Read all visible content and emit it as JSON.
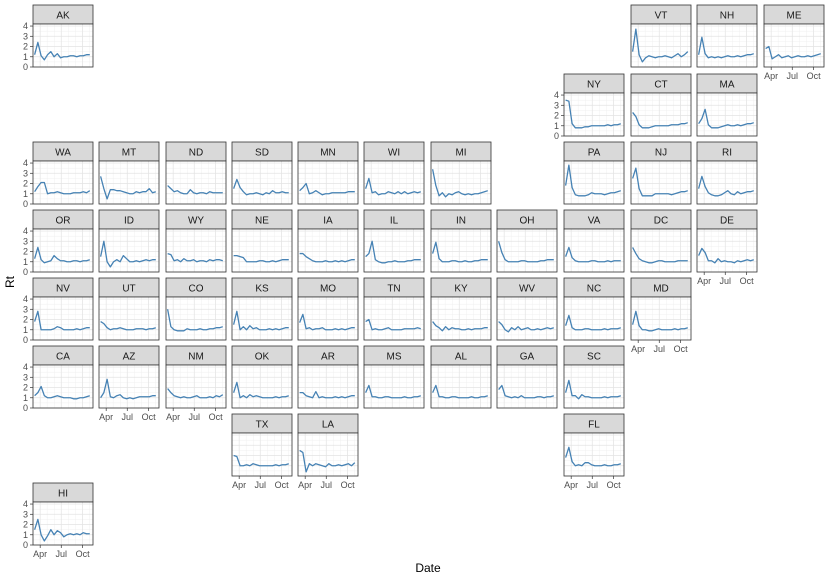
{
  "chart_data": {
    "type": "line",
    "facet": "us-state-grid",
    "xlabel": "Date",
    "ylabel": "Rt",
    "ylim": [
      0,
      4.2
    ],
    "y_ticks": [
      0,
      1,
      2,
      3,
      4
    ],
    "x_range": [
      "2020-03-01",
      "2020-11-15"
    ],
    "x_ticks": [
      {
        "date": "2020-04-01",
        "label": "Apr"
      },
      {
        "date": "2020-07-01",
        "label": "Jul"
      },
      {
        "date": "2020-10-01",
        "label": "Oct"
      }
    ],
    "grid": true,
    "line_color": "#4682b4",
    "strip_color": "#d9d9d9",
    "x": [
      "2020-03-08",
      "2020-03-22",
      "2020-04-05",
      "2020-04-19",
      "2020-05-03",
      "2020-05-17",
      "2020-05-31",
      "2020-06-14",
      "2020-06-28",
      "2020-07-12",
      "2020-07-26",
      "2020-08-09",
      "2020-08-23",
      "2020-09-06",
      "2020-09-20",
      "2020-10-04",
      "2020-10-18",
      "2020-11-01"
    ],
    "panels": [
      {
        "state": "AK",
        "values": [
          1.2,
          2.4,
          1.1,
          0.7,
          1.2,
          1.5,
          1.0,
          1.3,
          0.9,
          1.0,
          1.0,
          1.1,
          1.1,
          1.0,
          1.1,
          1.1,
          1.2,
          1.2
        ]
      },
      {
        "state": "VT",
        "values": [
          1.5,
          3.7,
          1.2,
          0.5,
          0.9,
          1.1,
          1.0,
          0.9,
          1.0,
          1.0,
          1.1,
          1.0,
          0.9,
          1.1,
          1.3,
          1.0,
          1.2,
          1.5
        ]
      },
      {
        "state": "NH",
        "values": [
          1.2,
          2.9,
          1.3,
          0.9,
          1.0,
          0.9,
          1.0,
          0.9,
          1.0,
          1.1,
          1.0,
          1.0,
          1.1,
          1.0,
          1.1,
          1.2,
          1.2,
          1.3
        ]
      },
      {
        "state": "ME",
        "values": [
          1.8,
          2.0,
          0.8,
          1.0,
          1.2,
          0.9,
          1.0,
          1.1,
          0.9,
          1.0,
          1.1,
          1.0,
          1.0,
          1.1,
          1.0,
          1.1,
          1.2,
          1.3
        ]
      },
      {
        "state": "NY",
        "values": [
          3.5,
          3.4,
          1.2,
          0.8,
          0.8,
          0.8,
          0.9,
          0.9,
          1.0,
          1.0,
          1.0,
          1.0,
          1.0,
          1.1,
          1.0,
          1.1,
          1.1,
          1.2
        ]
      },
      {
        "state": "CT",
        "values": [
          2.3,
          1.9,
          1.1,
          0.8,
          0.8,
          0.8,
          0.9,
          1.0,
          1.0,
          1.0,
          1.0,
          1.0,
          1.1,
          1.1,
          1.1,
          1.2,
          1.2,
          1.3
        ]
      },
      {
        "state": "MA",
        "values": [
          1.2,
          1.7,
          2.6,
          1.1,
          0.8,
          0.8,
          0.8,
          0.9,
          1.0,
          1.1,
          1.0,
          1.0,
          1.1,
          1.0,
          1.1,
          1.2,
          1.2,
          1.3
        ]
      },
      {
        "state": "WA",
        "values": [
          1.2,
          1.7,
          2.1,
          2.1,
          1.0,
          1.1,
          1.1,
          1.2,
          1.1,
          1.0,
          1.0,
          1.0,
          1.1,
          1.1,
          1.1,
          1.2,
          1.1,
          1.3
        ]
      },
      {
        "state": "MT",
        "values": [
          2.7,
          1.5,
          0.5,
          1.4,
          1.4,
          1.3,
          1.3,
          1.2,
          1.1,
          1.0,
          1.0,
          1.2,
          1.1,
          1.2,
          1.2,
          1.5,
          1.1,
          1.2
        ]
      },
      {
        "state": "ND",
        "values": [
          1.8,
          1.5,
          1.2,
          1.3,
          1.1,
          1.0,
          1.0,
          1.4,
          1.1,
          1.0,
          1.1,
          1.1,
          1.0,
          1.2,
          1.1,
          1.1,
          1.1,
          1.1
        ]
      },
      {
        "state": "SD",
        "values": [
          1.5,
          2.4,
          1.6,
          1.2,
          0.9,
          1.0,
          1.0,
          1.1,
          1.0,
          0.9,
          1.1,
          1.0,
          1.3,
          1.1,
          1.1,
          1.2,
          1.1,
          1.1
        ]
      },
      {
        "state": "MN",
        "values": [
          1.3,
          1.6,
          2.0,
          1.0,
          1.1,
          1.3,
          1.1,
          0.9,
          1.0,
          1.0,
          1.1,
          1.1,
          1.1,
          1.1,
          1.1,
          1.2,
          1.2,
          1.2
        ]
      },
      {
        "state": "WI",
        "values": [
          1.5,
          2.5,
          1.1,
          1.2,
          0.9,
          1.0,
          1.0,
          1.2,
          1.1,
          1.0,
          1.2,
          1.0,
          1.2,
          1.0,
          1.1,
          1.2,
          1.1,
          1.2
        ]
      },
      {
        "state": "MI",
        "values": [
          3.4,
          1.8,
          0.8,
          1.1,
          0.7,
          1.0,
          0.9,
          1.1,
          1.2,
          1.0,
          0.9,
          1.0,
          0.9,
          1.0,
          1.0,
          1.1,
          1.2,
          1.3
        ]
      },
      {
        "state": "PA",
        "values": [
          1.8,
          3.8,
          1.6,
          0.9,
          0.8,
          0.8,
          0.8,
          0.9,
          1.1,
          1.0,
          1.0,
          1.0,
          0.9,
          1.0,
          1.1,
          1.1,
          1.2,
          1.3
        ]
      },
      {
        "state": "NJ",
        "values": [
          2.5,
          3.5,
          1.5,
          0.8,
          0.8,
          0.8,
          0.8,
          1.0,
          1.0,
          1.0,
          1.0,
          1.0,
          0.9,
          1.0,
          1.1,
          1.2,
          1.2,
          1.3
        ]
      },
      {
        "state": "RI",
        "values": [
          1.5,
          2.7,
          1.7,
          1.1,
          0.9,
          0.8,
          0.8,
          0.9,
          1.1,
          1.3,
          1.0,
          0.9,
          1.2,
          1.0,
          1.1,
          1.2,
          1.2,
          1.3
        ]
      },
      {
        "state": "OR",
        "values": [
          1.3,
          2.4,
          1.2,
          0.9,
          1.0,
          1.1,
          1.6,
          1.3,
          1.1,
          1.1,
          1.0,
          1.0,
          1.1,
          1.1,
          1.0,
          1.1,
          1.1,
          1.2
        ]
      },
      {
        "state": "ID",
        "values": [
          1.5,
          3.0,
          1.0,
          0.5,
          1.0,
          1.2,
          1.0,
          1.6,
          1.3,
          1.0,
          1.0,
          1.1,
          1.0,
          1.1,
          1.2,
          1.1,
          1.2,
          1.2
        ]
      },
      {
        "state": "WY",
        "values": [
          1.8,
          1.7,
          1.1,
          1.2,
          1.0,
          1.3,
          1.1,
          1.1,
          1.2,
          1.0,
          1.1,
          1.1,
          1.0,
          1.2,
          1.1,
          1.2,
          1.2,
          1.1
        ]
      },
      {
        "state": "NE",
        "values": [
          1.6,
          1.6,
          1.5,
          1.4,
          1.0,
          1.0,
          1.0,
          1.0,
          1.1,
          1.1,
          1.0,
          1.0,
          1.1,
          1.0,
          1.1,
          1.2,
          1.2,
          1.2
        ]
      },
      {
        "state": "IA",
        "values": [
          1.8,
          1.8,
          1.5,
          1.3,
          1.1,
          1.0,
          1.0,
          1.0,
          1.1,
          1.0,
          1.0,
          1.1,
          1.0,
          1.1,
          1.0,
          1.1,
          1.2,
          1.2
        ]
      },
      {
        "state": "IL",
        "values": [
          1.5,
          1.8,
          3.0,
          1.2,
          1.0,
          0.9,
          0.9,
          1.0,
          1.0,
          1.1,
          1.0,
          1.0,
          1.0,
          1.1,
          1.1,
          1.2,
          1.2,
          1.2
        ]
      },
      {
        "state": "IN",
        "values": [
          1.8,
          2.9,
          1.3,
          1.0,
          1.0,
          1.0,
          1.1,
          1.1,
          1.0,
          1.0,
          1.1,
          1.0,
          1.0,
          1.1,
          1.1,
          1.2,
          1.2,
          1.2
        ]
      },
      {
        "state": "OH",
        "values": [
          3.0,
          1.9,
          1.2,
          1.0,
          1.0,
          1.0,
          1.0,
          1.1,
          1.1,
          1.0,
          1.0,
          1.0,
          1.0,
          1.1,
          1.1,
          1.2,
          1.2,
          1.2
        ]
      },
      {
        "state": "VA",
        "values": [
          1.5,
          2.4,
          1.4,
          1.1,
          1.0,
          1.0,
          1.0,
          1.0,
          1.1,
          1.1,
          1.0,
          1.0,
          1.0,
          1.1,
          1.0,
          1.1,
          1.1,
          1.1
        ]
      },
      {
        "state": "DC",
        "values": [
          2.4,
          1.8,
          1.3,
          1.1,
          1.0,
          0.9,
          0.9,
          1.0,
          1.1,
          1.1,
          1.0,
          1.0,
          1.0,
          1.0,
          1.1,
          1.1,
          1.1,
          1.1
        ]
      },
      {
        "state": "DE",
        "values": [
          1.6,
          2.3,
          1.9,
          1.1,
          1.1,
          0.9,
          1.3,
          1.0,
          1.1,
          1.0,
          1.0,
          0.9,
          1.1,
          1.0,
          1.1,
          1.2,
          1.1,
          1.2
        ]
      },
      {
        "state": "NV",
        "values": [
          1.8,
          2.8,
          1.0,
          1.0,
          1.0,
          1.0,
          1.1,
          1.3,
          1.2,
          1.0,
          1.0,
          1.0,
          1.0,
          1.1,
          1.0,
          1.1,
          1.2,
          1.2
        ]
      },
      {
        "state": "UT",
        "values": [
          1.8,
          1.6,
          1.2,
          1.0,
          1.1,
          1.1,
          1.2,
          1.1,
          1.0,
          1.0,
          1.0,
          1.1,
          1.1,
          1.1,
          1.0,
          1.1,
          1.1,
          1.2
        ]
      },
      {
        "state": "CO",
        "values": [
          3.0,
          1.3,
          1.0,
          0.9,
          0.9,
          0.9,
          1.1,
          1.0,
          1.0,
          1.0,
          1.1,
          1.0,
          1.0,
          1.1,
          1.1,
          1.2,
          1.2,
          1.3
        ]
      },
      {
        "state": "KS",
        "values": [
          1.5,
          2.8,
          1.0,
          1.3,
          1.0,
          1.4,
          1.1,
          1.2,
          1.0,
          1.0,
          1.0,
          1.1,
          1.0,
          1.1,
          1.0,
          1.1,
          1.2,
          1.2
        ]
      },
      {
        "state": "MO",
        "values": [
          1.7,
          2.5,
          1.1,
          1.2,
          1.0,
          1.1,
          1.1,
          1.2,
          1.0,
          1.0,
          1.0,
          1.1,
          1.0,
          1.1,
          1.0,
          1.1,
          1.2,
          1.2
        ]
      },
      {
        "state": "TN",
        "values": [
          1.8,
          2.0,
          1.0,
          1.1,
          1.0,
          1.0,
          1.1,
          1.2,
          1.0,
          1.0,
          1.0,
          1.0,
          1.1,
          1.1,
          1.1,
          1.1,
          1.2,
          1.1
        ]
      },
      {
        "state": "KY",
        "values": [
          1.8,
          1.4,
          1.2,
          0.9,
          1.3,
          1.0,
          1.2,
          1.1,
          1.1,
          1.0,
          1.0,
          1.1,
          1.0,
          1.1,
          1.1,
          1.1,
          1.2,
          1.2
        ]
      },
      {
        "state": "WV",
        "values": [
          1.8,
          1.5,
          1.0,
          0.8,
          1.2,
          1.0,
          1.3,
          1.0,
          1.1,
          1.2,
          1.0,
          1.0,
          1.1,
          1.0,
          1.1,
          1.2,
          1.1,
          1.2
        ]
      },
      {
        "state": "NC",
        "values": [
          1.4,
          2.4,
          1.2,
          1.0,
          1.0,
          1.0,
          1.1,
          1.1,
          1.0,
          1.0,
          1.0,
          1.0,
          1.1,
          1.0,
          1.1,
          1.1,
          1.1,
          1.2
        ]
      },
      {
        "state": "MD",
        "values": [
          1.5,
          2.8,
          1.4,
          1.0,
          1.0,
          0.9,
          0.9,
          1.0,
          1.1,
          1.0,
          1.0,
          1.0,
          1.0,
          1.1,
          1.0,
          1.1,
          1.1,
          1.2
        ]
      },
      {
        "state": "CA",
        "values": [
          1.2,
          1.5,
          2.1,
          1.2,
          1.0,
          1.0,
          1.1,
          1.2,
          1.1,
          1.0,
          1.0,
          1.0,
          0.9,
          0.9,
          1.0,
          1.0,
          1.1,
          1.2
        ]
      },
      {
        "state": "AZ",
        "values": [
          1.0,
          1.5,
          2.8,
          1.1,
          1.0,
          1.2,
          1.3,
          1.0,
          0.9,
          1.0,
          0.9,
          1.0,
          1.1,
          1.1,
          1.1,
          1.1,
          1.2,
          1.2
        ]
      },
      {
        "state": "NM",
        "values": [
          1.9,
          1.5,
          1.2,
          1.1,
          1.0,
          1.1,
          1.0,
          1.0,
          1.1,
          1.2,
          1.0,
          1.0,
          1.0,
          1.1,
          1.0,
          1.2,
          1.1,
          1.3
        ]
      },
      {
        "state": "OK",
        "values": [
          1.5,
          2.5,
          1.0,
          1.2,
          1.0,
          1.3,
          1.1,
          1.2,
          1.1,
          1.0,
          1.0,
          1.0,
          1.0,
          1.1,
          1.0,
          1.1,
          1.1,
          1.2
        ]
      },
      {
        "state": "AR",
        "values": [
          1.5,
          1.5,
          1.2,
          1.1,
          1.0,
          1.6,
          1.0,
          1.1,
          1.0,
          1.0,
          1.0,
          1.1,
          1.0,
          1.1,
          1.0,
          1.1,
          1.2,
          1.2
        ]
      },
      {
        "state": "MS",
        "values": [
          1.5,
          2.2,
          1.1,
          1.1,
          1.0,
          1.0,
          1.1,
          1.1,
          1.0,
          1.0,
          1.0,
          1.0,
          1.1,
          1.0,
          1.0,
          1.1,
          1.1,
          1.2
        ]
      },
      {
        "state": "AL",
        "values": [
          1.5,
          2.2,
          1.1,
          1.1,
          1.0,
          1.0,
          1.1,
          1.1,
          1.0,
          1.0,
          1.0,
          1.0,
          1.1,
          1.0,
          1.0,
          1.1,
          1.1,
          1.2
        ]
      },
      {
        "state": "GA",
        "values": [
          1.8,
          2.2,
          1.2,
          1.1,
          1.0,
          1.1,
          1.0,
          1.2,
          1.0,
          1.0,
          1.0,
          1.0,
          1.1,
          1.1,
          1.0,
          1.1,
          1.1,
          1.2
        ]
      },
      {
        "state": "SC",
        "values": [
          1.5,
          2.7,
          1.2,
          1.2,
          0.9,
          1.3,
          1.1,
          1.1,
          1.0,
          1.0,
          1.0,
          1.0,
          1.1,
          1.0,
          1.1,
          1.1,
          1.1,
          1.2
        ]
      },
      {
        "state": "TX",
        "values": [
          2.0,
          1.9,
          1.0,
          1.0,
          1.1,
          1.0,
          1.2,
          1.1,
          1.0,
          1.0,
          1.0,
          1.0,
          1.0,
          1.1,
          1.0,
          1.1,
          1.1,
          1.2
        ]
      },
      {
        "state": "LA",
        "values": [
          2.5,
          2.3,
          0.4,
          1.2,
          1.0,
          1.2,
          1.1,
          1.0,
          0.9,
          1.2,
          1.0,
          1.0,
          1.1,
          1.0,
          1.1,
          1.2,
          1.0,
          1.3
        ]
      },
      {
        "state": "FL",
        "values": [
          1.8,
          2.8,
          1.4,
          1.0,
          1.1,
          1.0,
          1.3,
          1.3,
          1.1,
          1.0,
          1.0,
          1.0,
          1.1,
          1.0,
          1.0,
          1.1,
          1.1,
          1.2
        ]
      },
      {
        "state": "HI",
        "values": [
          1.5,
          2.5,
          1.0,
          0.4,
          0.9,
          1.5,
          1.0,
          1.4,
          1.2,
          0.8,
          1.0,
          1.1,
          1.0,
          1.1,
          1.0,
          1.2,
          1.1,
          1.1
        ]
      }
    ]
  }
}
